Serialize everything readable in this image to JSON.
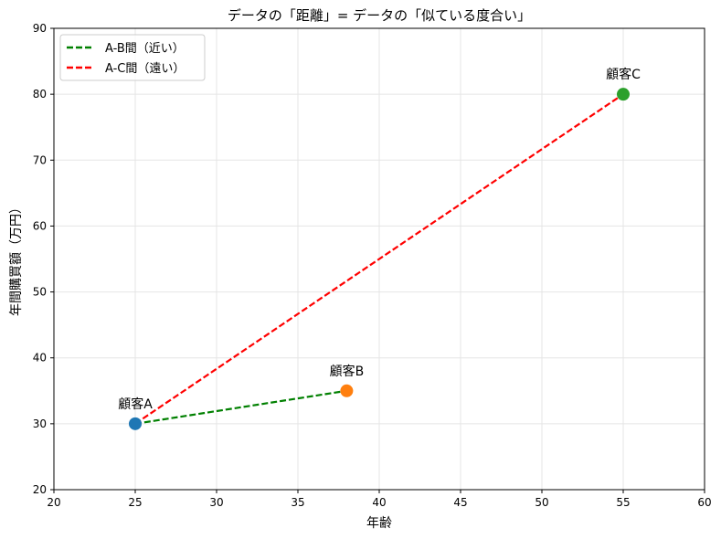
{
  "chart_data": {
    "type": "scatter",
    "title": "データの「距離」= データの「似ている度合い」",
    "xlabel": "年齢",
    "ylabel": "年間購買額（万円）",
    "xlim": [
      20,
      60
    ],
    "ylim": [
      20,
      90
    ],
    "xticks": [
      20,
      25,
      30,
      35,
      40,
      45,
      50,
      55,
      60
    ],
    "yticks": [
      20,
      30,
      40,
      50,
      60,
      70,
      80,
      90
    ],
    "grid": true,
    "legend_position": "top-left",
    "points": [
      {
        "label": "顧客A",
        "x": 25,
        "y": 30,
        "color": "#1f77b4"
      },
      {
        "label": "顧客B",
        "x": 38,
        "y": 35,
        "color": "#ff7f0e"
      },
      {
        "label": "顧客C",
        "x": 55,
        "y": 80,
        "color": "#2ca02c"
      }
    ],
    "lines": [
      {
        "name": "A-B間（近い）",
        "from": [
          25,
          30
        ],
        "to": [
          38,
          35
        ],
        "color": "#008000",
        "style": "dashed"
      },
      {
        "name": "A-C間（遠い）",
        "from": [
          25,
          30
        ],
        "to": [
          55,
          80
        ],
        "color": "#ff0000",
        "style": "dashed"
      }
    ]
  }
}
